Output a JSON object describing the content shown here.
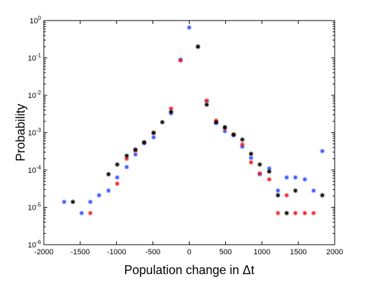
{
  "chart_data": {
    "type": "scatter",
    "title": "",
    "xlabel": "Population change in Δt",
    "ylabel": "Probability",
    "xlim": [
      -2000,
      2000
    ],
    "ylim_log10": [
      -6,
      0
    ],
    "y_scale": "log",
    "grid": false,
    "marker": "*",
    "x_ticks": [
      "-2000",
      "-1500",
      "-1000",
      "-500",
      "0",
      "500",
      "1000",
      "1500",
      "2000"
    ],
    "y_ticks": [
      {
        "base": "10",
        "exp": "0"
      },
      {
        "base": "10",
        "exp": "-1"
      },
      {
        "base": "10",
        "exp": "-2"
      },
      {
        "base": "10",
        "exp": "-3"
      },
      {
        "base": "10",
        "exp": "-4"
      },
      {
        "base": "10",
        "exp": "-5"
      },
      {
        "base": "10",
        "exp": "-6"
      }
    ],
    "series": [
      {
        "color": "#3355ff",
        "points": [
          [
            -1720,
            1.4e-05
          ],
          [
            -1480,
            7e-06
          ],
          [
            -1360,
            1.4e-05
          ],
          [
            -1240,
            2.1e-05
          ],
          [
            -1110,
            2.8e-05
          ],
          [
            -990,
            6.3e-05
          ],
          [
            -860,
            0.00012
          ],
          [
            -740,
            0.00026
          ],
          [
            -620,
            0.00052
          ],
          [
            -490,
            0.00075
          ],
          [
            -250,
            0.0033
          ],
          [
            -120,
            0.09
          ],
          [
            0,
            0.65
          ],
          [
            120,
            0.2
          ],
          [
            240,
            0.007
          ],
          [
            370,
            0.0018
          ],
          [
            490,
            0.0011
          ],
          [
            610,
            0.00085
          ],
          [
            730,
            0.00042
          ],
          [
            850,
            0.00021
          ],
          [
            970,
            7.7e-05
          ],
          [
            1100,
            0.00011
          ],
          [
            1220,
            2.8e-05
          ],
          [
            1340,
            6.3e-05
          ],
          [
            1460,
            6.3e-05
          ],
          [
            1590,
            5.6e-05
          ],
          [
            1710,
            2.8e-05
          ],
          [
            1830,
            0.00032
          ]
        ]
      },
      {
        "color": "#ee2222",
        "points": [
          [
            -1360,
            7e-06
          ],
          [
            -990,
            4.3e-05
          ],
          [
            -860,
            0.0002
          ],
          [
            -740,
            0.00033
          ],
          [
            -620,
            0.00055
          ],
          [
            -490,
            0.001
          ],
          [
            -250,
            0.0044
          ],
          [
            -120,
            0.085
          ],
          [
            120,
            0.2
          ],
          [
            240,
            0.0072
          ],
          [
            370,
            0.0021
          ],
          [
            490,
            0.0013
          ],
          [
            610,
            0.0009
          ],
          [
            730,
            0.00048
          ],
          [
            850,
            0.00016
          ],
          [
            970,
            8.1e-05
          ],
          [
            1100,
            5.6e-05
          ],
          [
            1220,
            7e-06
          ],
          [
            1340,
            2.1e-05
          ],
          [
            1460,
            7e-06
          ],
          [
            1590,
            7e-06
          ],
          [
            1710,
            7e-06
          ]
        ]
      },
      {
        "color": "#000000",
        "points": [
          [
            -1600,
            1.4e-05
          ],
          [
            -1110,
            7.7e-05
          ],
          [
            -990,
            0.00014
          ],
          [
            -860,
            0.00024
          ],
          [
            -740,
            0.00035
          ],
          [
            -620,
            0.00055
          ],
          [
            -490,
            0.00098
          ],
          [
            -370,
            0.0019
          ],
          [
            -250,
            0.0036
          ],
          [
            120,
            0.2
          ],
          [
            240,
            0.0056
          ],
          [
            370,
            0.0019
          ],
          [
            490,
            0.0014
          ],
          [
            610,
            0.00088
          ],
          [
            730,
            0.00065
          ],
          [
            850,
            0.00027
          ],
          [
            970,
            0.00014
          ],
          [
            1100,
            9.1e-05
          ],
          [
            1220,
            2.1e-05
          ],
          [
            1340,
            7e-06
          ],
          [
            1460,
            2.8e-05
          ],
          [
            1830,
            2.1e-05
          ]
        ]
      }
    ]
  }
}
